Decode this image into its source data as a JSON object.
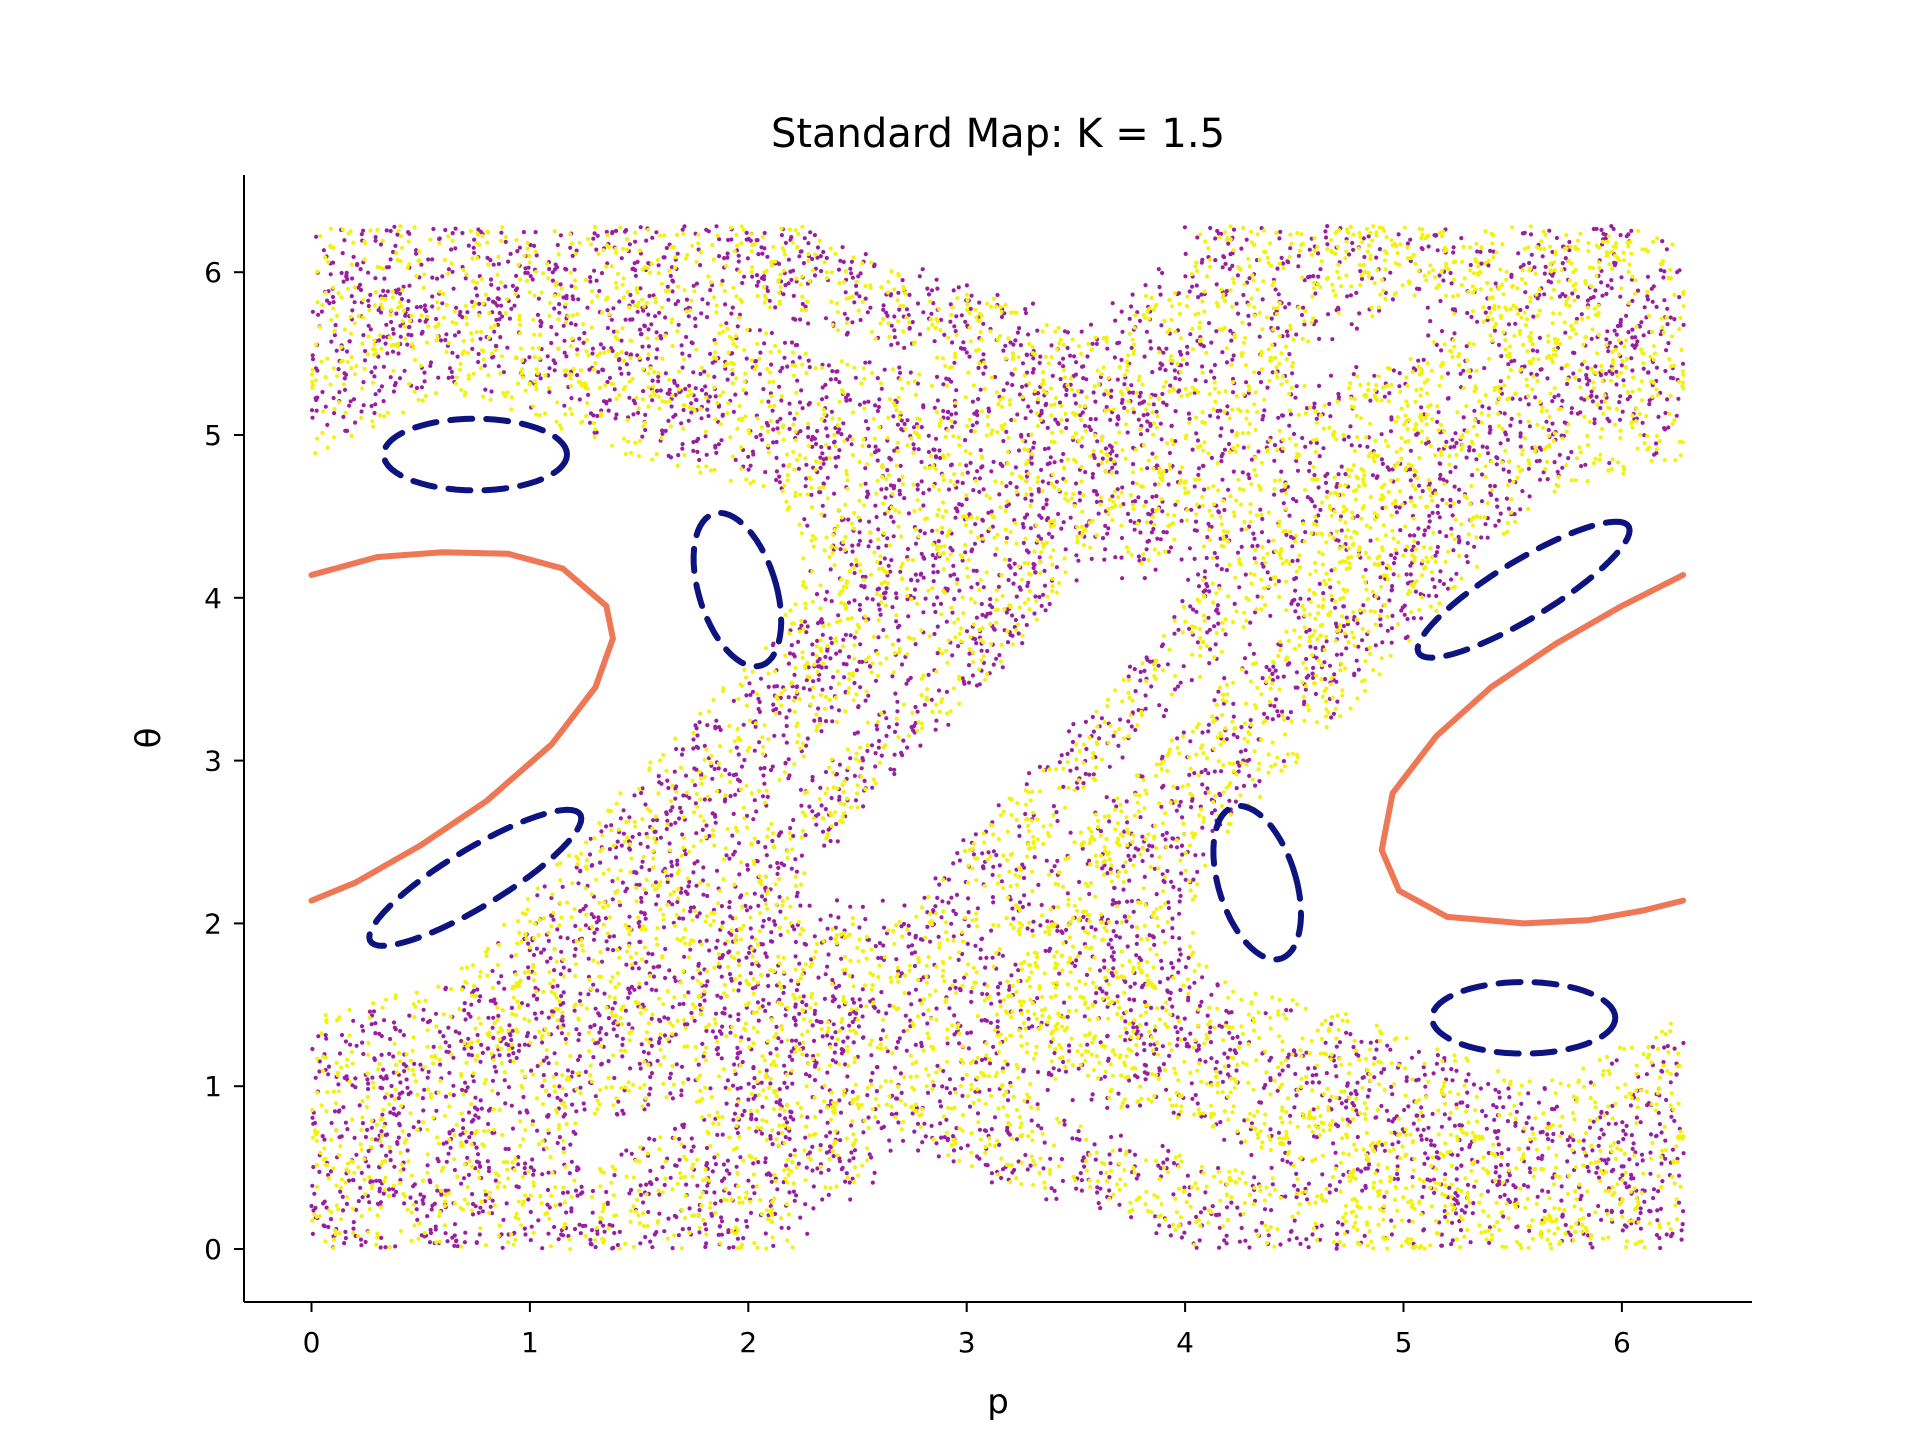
{
  "chart_data": {
    "type": "scatter",
    "title": "Standard Map: K = 1.5",
    "xlabel": "p",
    "ylabel": "θ",
    "xlim": [
      -0.31,
      6.6
    ],
    "ylim": [
      -0.31,
      6.6
    ],
    "xticks": [
      0,
      1,
      2,
      3,
      4,
      5,
      6
    ],
    "yticks": [
      0,
      1,
      2,
      3,
      4,
      5,
      6
    ],
    "xtick_labels": [
      "0",
      "1",
      "2",
      "3",
      "4",
      "5",
      "6"
    ],
    "ytick_labels": [
      "0",
      "1",
      "2",
      "3",
      "4",
      "5",
      "6"
    ],
    "grid": false,
    "legend": "none",
    "colors": {
      "chaotic_purple": "#9a1f9e",
      "chaotic_yellow": "#f2f20a",
      "island_chain": "#0d1480",
      "period1_orbit": "#ee7755",
      "axis": "#000000"
    },
    "parameters": {
      "K": 1.5,
      "domain_max": 6.2832
    },
    "series": [
      {
        "style": "scatter-dots",
        "color": "#9a1f9e",
        "kind": "standard-map-orbit",
        "initial_condition": [
          2.6,
          2.1
        ],
        "iterations": 6500
      },
      {
        "style": "scatter-dots",
        "color": "#f2f20a",
        "kind": "standard-map-orbit",
        "initial_condition": [
          3.5,
          5.3
        ],
        "iterations": 6500
      },
      {
        "style": "dashed-line",
        "color": "#0d1480",
        "kind": "island-chain",
        "loops": [
          {
            "center": [
              0.75,
              4.88
            ],
            "rx": 0.42,
            "ry": 0.22,
            "tilt": 0
          },
          {
            "center": [
              1.95,
              4.05
            ],
            "rx": 0.18,
            "ry": 0.48,
            "tilt": 0.2
          },
          {
            "center": [
              0.75,
              2.28
            ],
            "rx": 0.62,
            "ry": 0.16,
            "tilt": 0.7
          },
          {
            "center": [
              5.55,
              1.42
            ],
            "rx": 0.42,
            "ry": 0.22,
            "tilt": 0
          },
          {
            "center": [
              4.33,
              2.25
            ],
            "rx": 0.18,
            "ry": 0.48,
            "tilt": 0.2
          },
          {
            "center": [
              5.55,
              4.05
            ],
            "rx": 0.62,
            "ry": 0.16,
            "tilt": 0.7
          }
        ]
      },
      {
        "style": "solid-line",
        "color": "#ee7755",
        "kind": "period-1-orbit",
        "arcs": [
          {
            "x": [
              0.0,
              0.3,
              0.6,
              0.9,
              1.15,
              1.35,
              1.38,
              1.3,
              1.1,
              0.8,
              0.5,
              0.2,
              0.0
            ],
            "y": [
              4.14,
              4.25,
              4.28,
              4.27,
              4.18,
              3.95,
              3.75,
              3.45,
              3.1,
              2.75,
              2.48,
              2.25,
              2.14
            ]
          },
          {
            "x": [
              6.28,
              6.0,
              5.7,
              5.4,
              5.15,
              4.95,
              4.9,
              4.98,
              5.2,
              5.55,
              5.85,
              6.1,
              6.28
            ],
            "y": [
              4.14,
              3.95,
              3.72,
              3.45,
              3.15,
              2.8,
              2.45,
              2.2,
              2.04,
              2.0,
              2.02,
              2.08,
              2.14
            ]
          }
        ]
      }
    ]
  }
}
